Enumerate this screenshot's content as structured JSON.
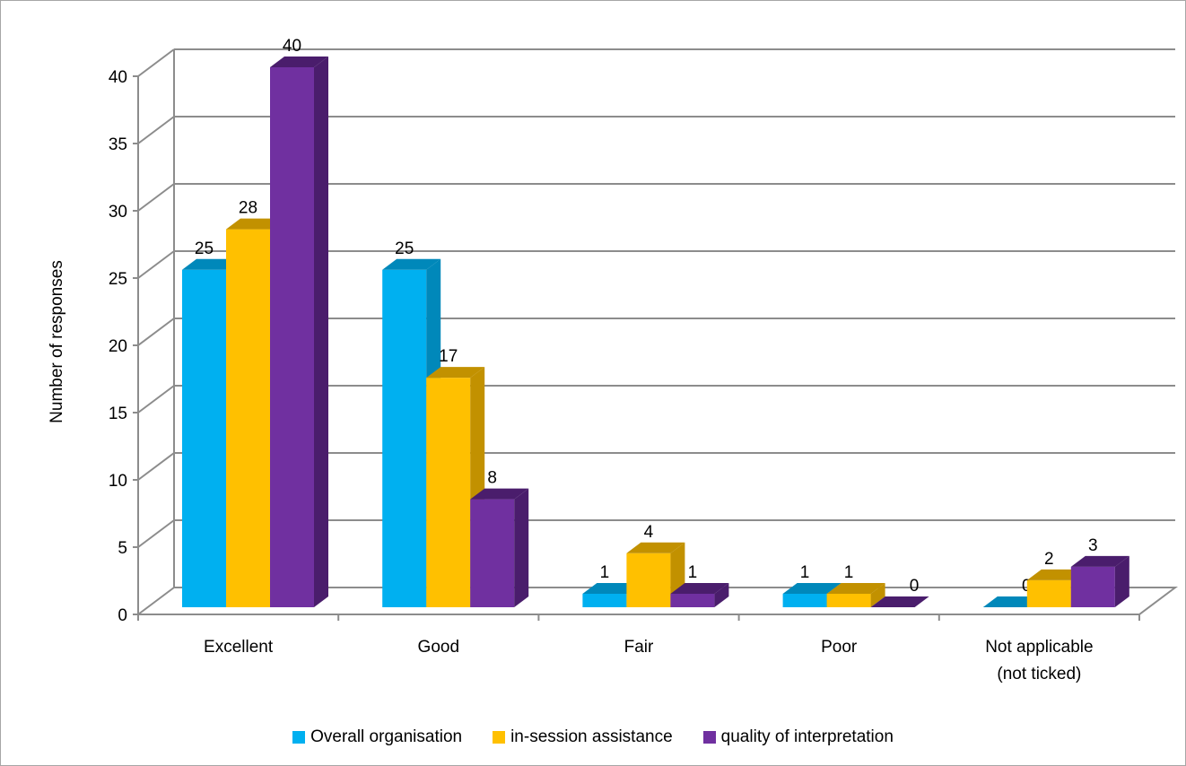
{
  "chart_data": {
    "type": "bar",
    "style": "3d-clustered-column",
    "categories": [
      "Excellent",
      "Good",
      "Fair",
      "Poor",
      "Not applicable (not ticked)"
    ],
    "category_lines": [
      [
        "Excellent"
      ],
      [
        "Good"
      ],
      [
        "Fair"
      ],
      [
        "Poor"
      ],
      [
        "Not applicable",
        "(not ticked)"
      ]
    ],
    "series": [
      {
        "name": "Overall organisation",
        "values": [
          25,
          25,
          1,
          1,
          0
        ],
        "color": "#00b0f0",
        "side": "#0088ba",
        "top": "#0088ba"
      },
      {
        "name": "in-session assistance",
        "values": [
          28,
          17,
          4,
          1,
          2
        ],
        "color": "#ffc000",
        "side": "#c29100",
        "top": "#c29100"
      },
      {
        "name": "quality of interpretation",
        "values": [
          40,
          8,
          1,
          0,
          3
        ],
        "color": "#7030a0",
        "side": "#4a1d6c",
        "top": "#4a1d6c"
      }
    ],
    "ylabel": "Number of responses",
    "xlabel": "",
    "ylim": [
      0,
      40
    ],
    "yticks": [
      0,
      5,
      10,
      15,
      20,
      25,
      30,
      35,
      40
    ],
    "grid": true,
    "legend_position": "bottom"
  }
}
